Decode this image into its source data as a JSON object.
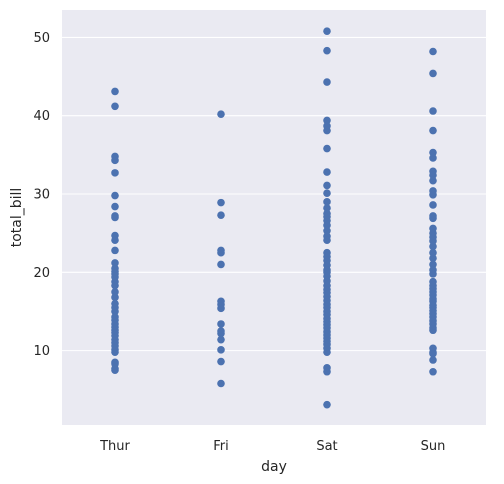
{
  "chart_data": {
    "type": "scatter",
    "title": "",
    "xlabel": "day",
    "ylabel": "total_bill",
    "categories": [
      "Thur",
      "Fri",
      "Sat",
      "Sun"
    ],
    "ylim": [
      0.5,
      53.5
    ],
    "yticks": [
      10,
      20,
      30,
      40,
      50
    ],
    "grid": true,
    "background": "#eaeaf2",
    "grid_color": "#ffffff",
    "point_color": "#4c72b0",
    "series": [
      {
        "category": "Thur",
        "values": [
          43.1,
          41.2,
          34.8,
          34.3,
          32.7,
          29.8,
          28.4,
          27.2,
          27.0,
          24.7,
          24.1,
          22.8,
          21.2,
          20.5,
          20.1,
          19.8,
          19.4,
          18.8,
          18.3,
          17.5,
          16.8,
          16.0,
          15.5,
          15.0,
          14.3,
          13.9,
          13.4,
          13.0,
          12.6,
          12.3,
          11.9,
          11.4,
          11.0,
          10.6,
          10.1,
          9.8,
          8.5,
          8.3,
          7.7,
          7.5
        ]
      },
      {
        "category": "Fri",
        "values": [
          40.2,
          28.9,
          27.3,
          22.8,
          22.5,
          21.0,
          16.3,
          15.9,
          15.4,
          13.4,
          12.5,
          12.2,
          11.4,
          10.1,
          8.6,
          5.8
        ]
      },
      {
        "category": "Sat",
        "values": [
          50.8,
          48.3,
          44.3,
          39.4,
          38.7,
          38.1,
          35.8,
          32.8,
          31.1,
          30.1,
          29.0,
          28.2,
          27.5,
          27.1,
          26.6,
          26.0,
          25.3,
          24.6,
          24.1,
          22.5,
          22.0,
          21.5,
          20.9,
          20.3,
          20.0,
          19.5,
          18.9,
          18.3,
          17.8,
          17.4,
          16.9,
          16.4,
          15.9,
          15.5,
          15.0,
          14.6,
          14.1,
          13.7,
          13.3,
          12.9,
          12.4,
          12.0,
          11.6,
          11.2,
          10.8,
          10.3,
          9.8,
          7.8,
          7.3,
          3.1
        ]
      },
      {
        "category": "Sun",
        "values": [
          48.2,
          45.4,
          40.6,
          38.1,
          35.3,
          34.6,
          32.9,
          32.4,
          31.7,
          30.4,
          29.9,
          28.6,
          27.2,
          26.9,
          25.6,
          25.0,
          24.5,
          24.0,
          23.3,
          22.5,
          21.8,
          21.0,
          20.3,
          19.8,
          18.8,
          18.3,
          17.9,
          17.5,
          17.1,
          16.6,
          16.3,
          15.8,
          15.5,
          15.1,
          14.7,
          14.3,
          13.8,
          13.4,
          12.9,
          12.6,
          10.3,
          9.8,
          9.6,
          8.8,
          7.3
        ]
      }
    ]
  }
}
